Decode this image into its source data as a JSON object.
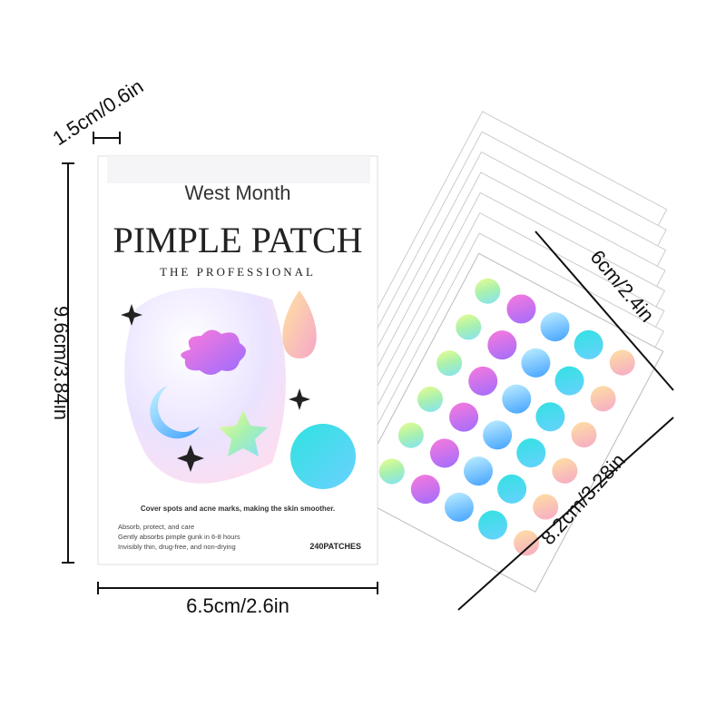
{
  "dimensions": {
    "thickness": "1.5cm/0.6in",
    "height": "9.6cm/3.84in",
    "width": "6.5cm/2.6in",
    "sheet_width": "6cm/2.4in",
    "sheet_height": "8.2cm/3.28in"
  },
  "box": {
    "brand": "West Month",
    "title": "PIMPLE PATCH",
    "subtitle": "THE PROFESSIONAL",
    "tagline": "Cover spots and acne marks, making the skin smoother.",
    "features": [
      "Absorb, protect, and care",
      "Gently absorbs pimple gunk in 6-8 hours",
      "Invisibly thin, drug-free, and non-drying"
    ],
    "count": "240PATCHES"
  }
}
